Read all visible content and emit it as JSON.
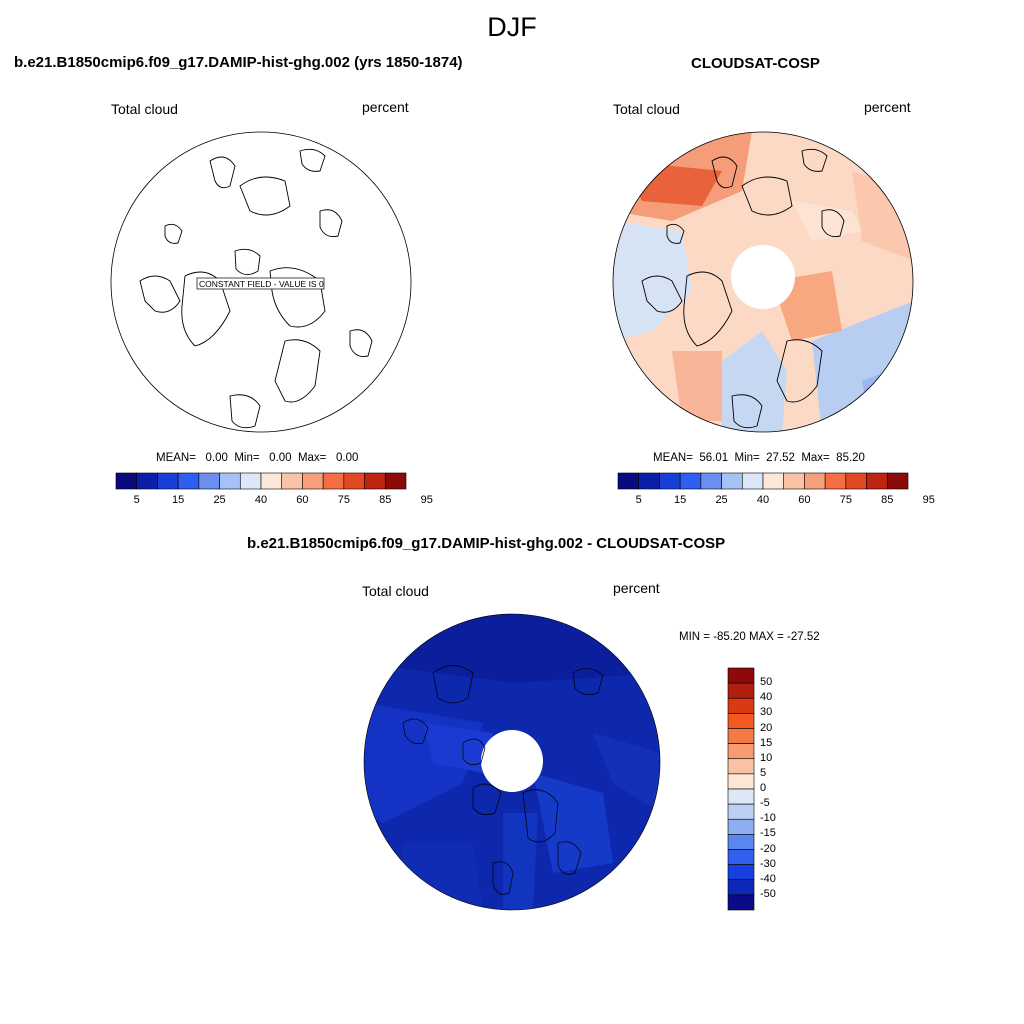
{
  "page": {
    "title": "DJF"
  },
  "panel_left": {
    "title": "b.e21.B1850cmip6.f09_g17.DAMIP-hist-ghg.002 (yrs 1850-1874)",
    "variable": "Total cloud",
    "units": "percent",
    "annotation": "CONSTANT FIELD - VALUE IS 0",
    "stats": {
      "mean_label": "MEAN=",
      "mean": "0.00",
      "min_label": "Min=",
      "min": "0.00",
      "max_label": "Max=",
      "max": "0.00"
    }
  },
  "panel_right": {
    "title": "CLOUDSAT-COSP",
    "variable": "Total cloud",
    "units": "percent",
    "stats": {
      "mean_label": "MEAN=",
      "mean": "56.01",
      "min_label": "Min=",
      "min": "27.52",
      "max_label": "Max=",
      "max": "85.20"
    }
  },
  "panel_diff": {
    "title": "b.e21.B1850cmip6.f09_g17.DAMIP-hist-ghg.002 - CLOUDSAT-COSP",
    "variable": "Total cloud",
    "units": "percent",
    "minmax": "MIN = -85.20 MAX = -27.52"
  },
  "colorbar_h": {
    "colors": [
      "#0a0a80",
      "#0d1fa6",
      "#1a3fd9",
      "#2f5ff0",
      "#6b8ff0",
      "#a6c1f5",
      "#dbe8f7",
      "#fde7d8",
      "#fbc3a6",
      "#f7a07e",
      "#f46d43",
      "#e34a24",
      "#bf2410",
      "#8c0a0a"
    ],
    "tick_labels": [
      "5",
      "15",
      "25",
      "40",
      "60",
      "75",
      "85",
      "95"
    ]
  },
  "colorbar_v": {
    "colors": [
      "#8c0a0a",
      "#b01e0e",
      "#d93a14",
      "#f25a22",
      "#f47a45",
      "#f79b70",
      "#fac2a4",
      "#fde6d6",
      "#dde8f6",
      "#bcd0f3",
      "#8daef0",
      "#5a86ef",
      "#3160ec",
      "#1840e0",
      "#0c28b8",
      "#0a0a8a"
    ],
    "tick_labels": [
      "50",
      "40",
      "30",
      "20",
      "15",
      "10",
      "5",
      "0",
      "-5",
      "-10",
      "-15",
      "-20",
      "-30",
      "-40",
      "-50"
    ]
  },
  "chart_data": [
    {
      "type": "heatmap",
      "title": "b.e21.B1850cmip6.f09_g17.DAMIP-hist-ghg.002 (yrs 1850-1874)",
      "projection": "north polar stereographic",
      "variable": "Total cloud",
      "units": "percent",
      "constant_value": 0,
      "mean": 0.0,
      "min": 0.0,
      "max": 0.0,
      "levels": [
        5,
        10,
        15,
        20,
        25,
        30,
        40,
        50,
        60,
        70,
        75,
        80,
        85,
        90,
        95
      ]
    },
    {
      "type": "heatmap",
      "title": "CLOUDSAT-COSP",
      "projection": "north polar stereographic",
      "variable": "Total cloud",
      "units": "percent",
      "mean": 56.01,
      "min": 27.52,
      "max": 85.2,
      "levels": [
        5,
        10,
        15,
        20,
        25,
        30,
        40,
        50,
        60,
        70,
        75,
        80,
        85,
        90,
        95
      ]
    },
    {
      "type": "heatmap",
      "title": "b.e21.B1850cmip6.f09_g17.DAMIP-hist-ghg.002 - CLOUDSAT-COSP",
      "projection": "north polar stereographic",
      "variable": "Total cloud",
      "units": "percent",
      "min": -85.2,
      "max": -27.52,
      "levels": [
        -50,
        -40,
        -30,
        -20,
        -15,
        -10,
        -5,
        0,
        5,
        10,
        15,
        20,
        30,
        40,
        50
      ]
    }
  ]
}
